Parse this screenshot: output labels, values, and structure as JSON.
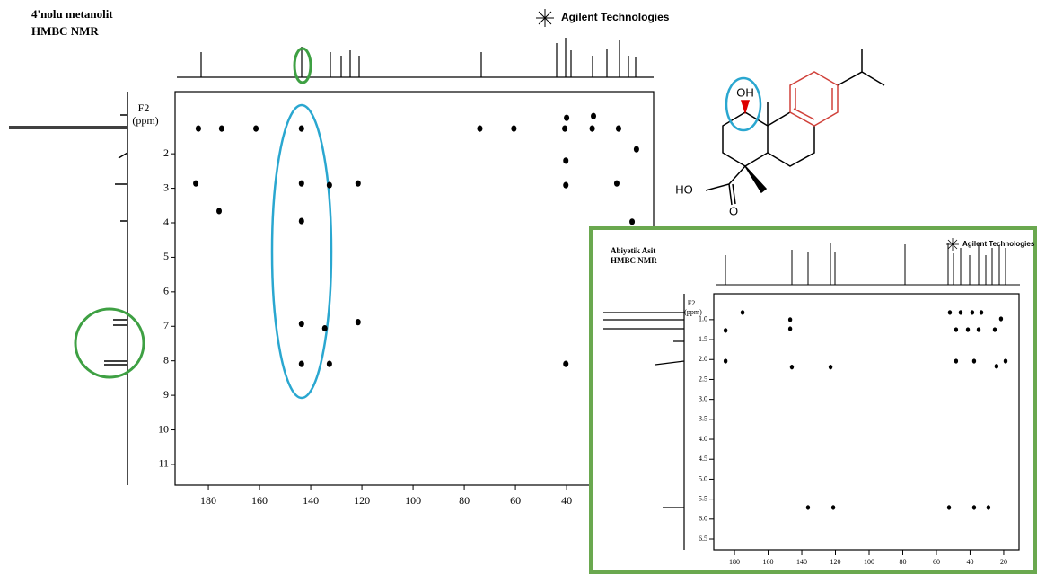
{
  "chart_data": [
    {
      "type": "scatter",
      "title": "4'nolu metanolit",
      "subtitle": "HMBC NMR",
      "brand": "Agilent Technologies",
      "ylabel": "F2",
      "yunit": "(ppm)",
      "x": [
        143.6,
        143.6,
        143.6,
        143.6,
        143.6,
        132.7,
        121.5,
        175.8,
        134.5,
        121.5,
        132.7,
        40.3,
        40.3,
        20.4,
        14.4,
        184.9,
        183.9,
        174.8,
        161.4,
        73.9,
        60.6,
        40.7,
        30,
        19.7,
        40,
        29.5,
        40.3,
        12.7
      ],
      "y": [
        1.27,
        2.86,
        3.95,
        6.93,
        8.09,
        2.91,
        2.86,
        3.66,
        7.06,
        6.88,
        8.09,
        8.09,
        2.91,
        2.86,
        3.97,
        2.86,
        1.27,
        1.27,
        1.27,
        1.27,
        1.27,
        1.27,
        1.27,
        1.27,
        0.96,
        0.91,
        2.2,
        1.87
      ],
      "color": "#000000",
      "xlim": [
        193,
        6
      ],
      "ylim": [
        0.2,
        11.6
      ],
      "xticks": [
        180,
        160,
        140,
        120,
        100,
        80,
        60,
        40
      ],
      "yticks": [
        2,
        3,
        4,
        5,
        6,
        7,
        8,
        9,
        10,
        11
      ]
    },
    {
      "type": "scatter",
      "title": "Abiyetik Asit",
      "subtitle": "HMBC NMR",
      "brand": "Agilent Technologies",
      "ylabel": "F2",
      "yunit": "(ppm)",
      "x": [
        185.3,
        175.2,
        146.9,
        146.9,
        52,
        45.6,
        38.7,
        33.3,
        21.6,
        48.3,
        41.3,
        34.9,
        25.3,
        145.9,
        122.9,
        48.3,
        37.6,
        18.9,
        24.3,
        52.5,
        37.6,
        29.1,
        121.3,
        136.3,
        185.3
      ],
      "y": [
        1.27,
        0.82,
        1.0,
        1.23,
        0.82,
        0.82,
        0.82,
        0.82,
        0.98,
        1.25,
        1.25,
        1.25,
        1.25,
        2.19,
        2.19,
        2.04,
        2.04,
        2.04,
        2.17,
        5.71,
        5.71,
        5.71,
        5.71,
        5.71,
        2.04
      ],
      "color": "#000000",
      "xlim": [
        192.3,
        10.9
      ],
      "ylim": [
        0.35,
        6.77
      ],
      "xticks": [
        180,
        160,
        140,
        120,
        100,
        80,
        60,
        40,
        20
      ],
      "yticks": [
        {
          "value": 1,
          "label": "1.0"
        },
        1.5,
        {
          "value": 2,
          "label": "2.0"
        },
        2.5,
        {
          "value": 3,
          "label": "3.0"
        },
        3.5,
        {
          "value": 4,
          "label": "4.0"
        },
        4.5,
        {
          "value": 5,
          "label": "5.0"
        },
        5.5,
        {
          "value": 6,
          "label": "6.0"
        },
        6.5
      ]
    }
  ],
  "structure": {
    "oh": "OH",
    "ho": "HO",
    "o": "O"
  }
}
